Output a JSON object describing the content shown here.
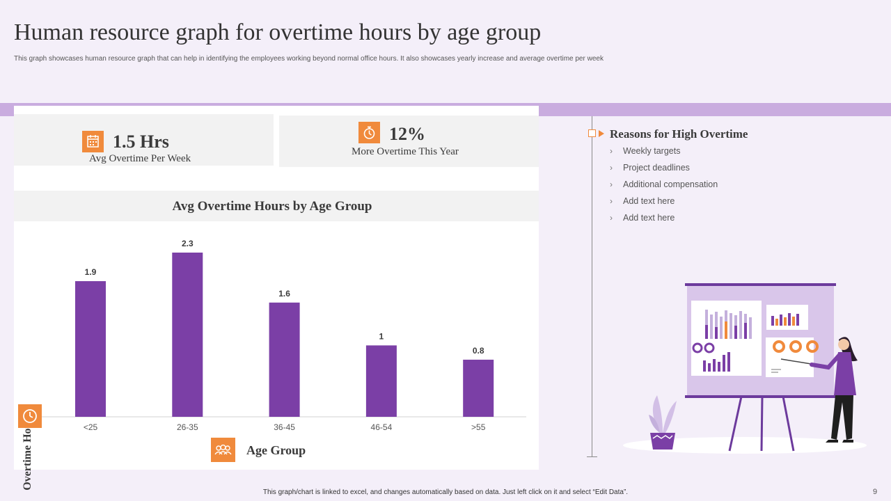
{
  "title": "Human resource graph for overtime hours by age group",
  "subtitle": "This graph showcases human resource graph that can help in identifying the employees working beyond normal office hours. It also showcases yearly increase and average overtime per week",
  "kpis": [
    {
      "value": "1.5 Hrs",
      "label": "Avg Overtime  Per Week",
      "icon": "calendar-icon"
    },
    {
      "value": "12%",
      "label": "More Overtime  This  Year",
      "icon": "stopwatch-icon"
    }
  ],
  "reasons": {
    "title": "Reasons for High Overtime",
    "items": [
      "Weekly targets",
      "Project deadlines",
      "Additional compensation",
      "Add text here",
      "Add text here"
    ]
  },
  "footer": "This graph/chart is linked to excel, and changes automatically based on data. Just left click on it and select “Edit Data”.",
  "page_number": "9",
  "colors": {
    "bar": "#7b3fa6",
    "accent": "#f08a3c",
    "band": "#c9acdf"
  },
  "chart_data": {
    "type": "bar",
    "title": "Avg Overtime  Hours  by Age Group",
    "xlabel": "Age Group",
    "ylabel": "Overtime Hours",
    "categories": [
      "<25",
      "26-35",
      "36-45",
      "46-54",
      ">55"
    ],
    "values": [
      1.9,
      2.3,
      1.6,
      1,
      0.8
    ],
    "data_labels": [
      "1.9",
      "2.3",
      "1.6",
      "1",
      "0.8"
    ],
    "ylim": [
      0,
      2.3
    ],
    "grid": false,
    "legend": "none"
  }
}
